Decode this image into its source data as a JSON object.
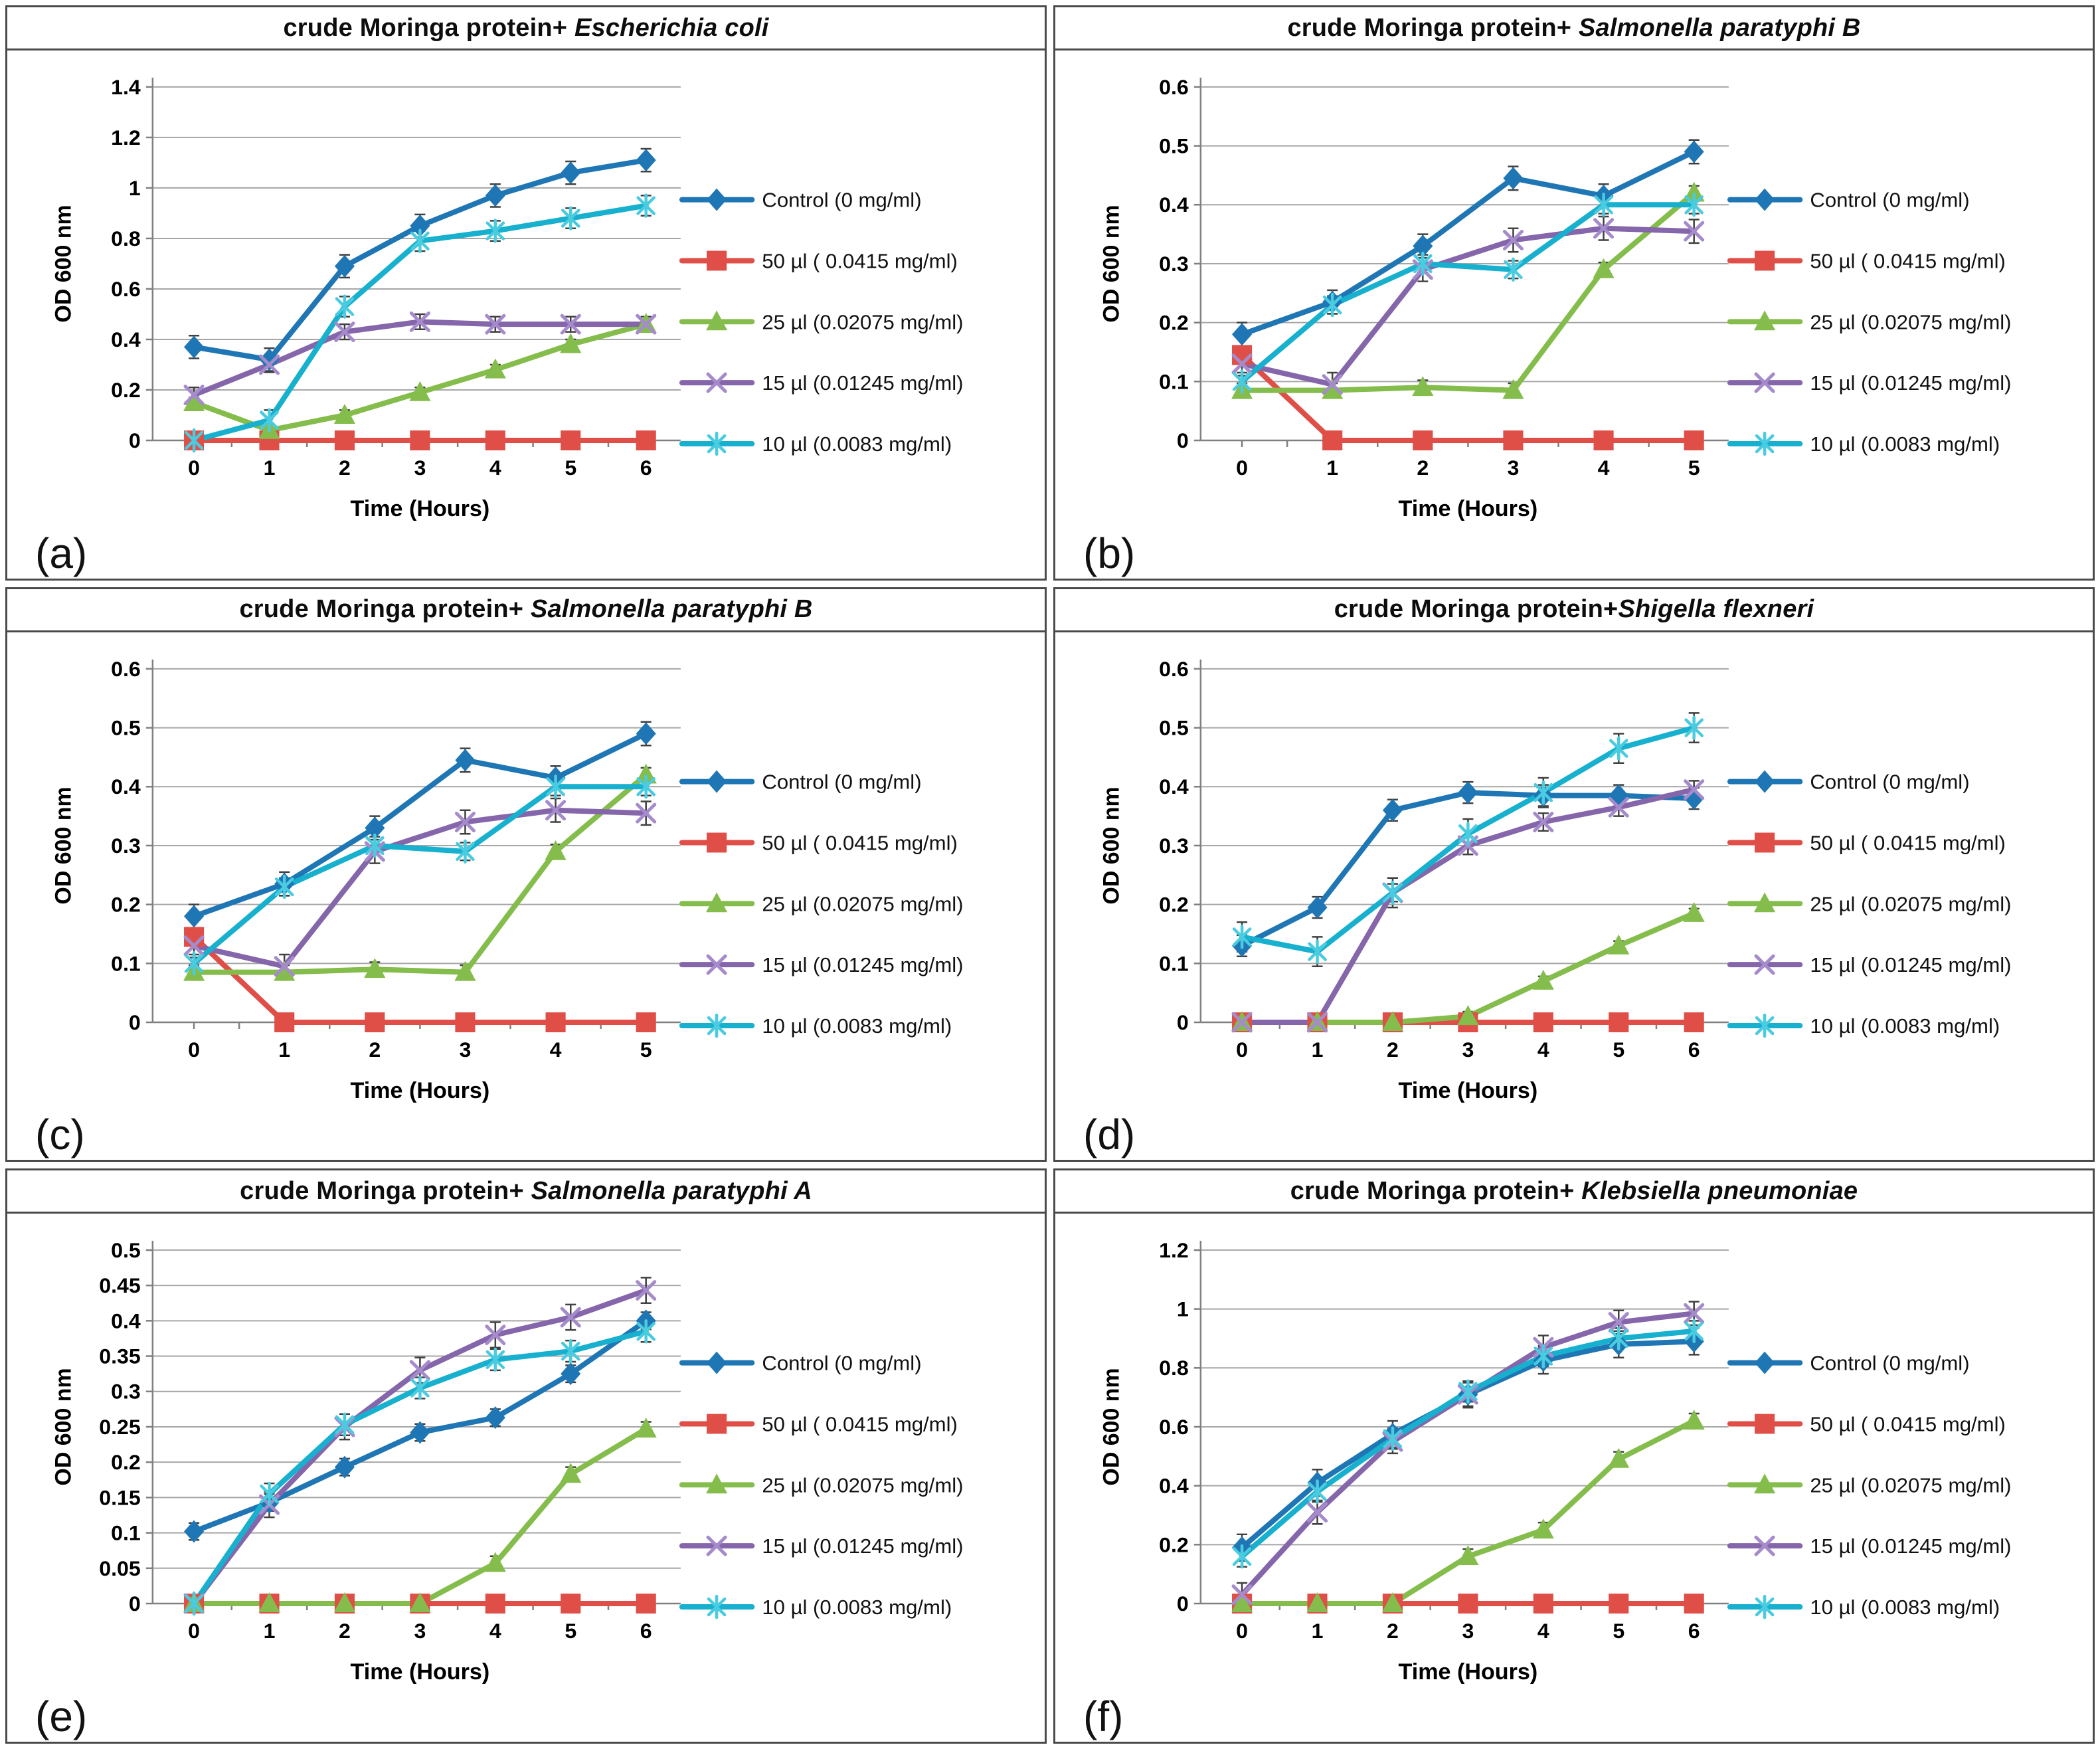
{
  "figure": {
    "background": "#ffffff",
    "panel_border_color": "#4a4a4a",
    "gridline_color": "#a6a6a6",
    "axis_color": "#808080",
    "error_bar_color": "#404040",
    "text_color": "#000000"
  },
  "chart_data": [
    {
      "panel_label": "(a)",
      "type": "line",
      "title_prefix": "crude Moringa protein+ ",
      "title_species": "Escherichia coli",
      "title": "crude Moringa protein+ Escherichia coli",
      "xlabel": "Time (Hours)",
      "ylabel": "OD 600 nm",
      "x": [
        0,
        1,
        2,
        3,
        4,
        5,
        6
      ],
      "ylim": [
        0,
        1.4
      ],
      "ytick_step": 0.2,
      "grid": true,
      "legend_position": "right",
      "series": [
        {
          "name": "Control (0 mg/ml)",
          "marker": "diamond",
          "color": "#1F76B5",
          "marker_color": "#1F76B5",
          "err": 0.045,
          "values": [
            0.37,
            0.32,
            0.69,
            0.85,
            0.97,
            1.06,
            1.11
          ]
        },
        {
          "name": "50 µl ( 0.0415 mg/ml)",
          "marker": "square",
          "color": "#DF4F47",
          "marker_color": "#DF4F47",
          "err": 0,
          "values": [
            0,
            0,
            0,
            0,
            0,
            0,
            0
          ]
        },
        {
          "name": "25 µl (0.02075 mg/ml)",
          "marker": "triangle",
          "color": "#84BD4B",
          "marker_color": "#84BD4B",
          "err": 0.02,
          "values": [
            0.15,
            0.04,
            0.1,
            0.19,
            0.28,
            0.38,
            0.46
          ]
        },
        {
          "name": "15 µl (0.01245 mg/ml)",
          "marker": "x",
          "color": "#8566AB",
          "marker_color": "#A58BCB",
          "err": 0.03,
          "values": [
            0.18,
            0.3,
            0.43,
            0.47,
            0.46,
            0.46,
            0.46
          ]
        },
        {
          "name": "10 µl (0.0083 mg/ml)",
          "marker": "asterisk",
          "color": "#17B0CE",
          "marker_color": "#49CBE0",
          "err": 0.04,
          "values": [
            0,
            0.08,
            0.53,
            0.79,
            0.83,
            0.88,
            0.93
          ]
        }
      ]
    },
    {
      "panel_label": "(b)",
      "type": "line",
      "title_prefix": "crude Moringa protein+ ",
      "title_species": "Salmonella paratyphi B",
      "title": "crude Moringa protein+ Salmonella paratyphi B",
      "xlabel": "Time (Hours)",
      "ylabel": "OD 600 nm",
      "x": [
        0,
        1,
        2,
        3,
        4,
        5
      ],
      "ylim": [
        0,
        0.6
      ],
      "ytick_step": 0.1,
      "grid": true,
      "legend_position": "right",
      "series": [
        {
          "name": "Control (0 mg/ml)",
          "marker": "diamond",
          "color": "#1F76B5",
          "marker_color": "#1F76B5",
          "err": 0.02,
          "values": [
            0.18,
            0.235,
            0.33,
            0.445,
            0.415,
            0.49
          ]
        },
        {
          "name": "50 µl ( 0.0415 mg/ml)",
          "marker": "square",
          "color": "#DF4F47",
          "marker_color": "#DF4F47",
          "err": 0,
          "values": [
            0.145,
            0,
            0,
            0,
            0,
            0
          ]
        },
        {
          "name": "25 µl (0.02075 mg/ml)",
          "marker": "triangle",
          "color": "#84BD4B",
          "marker_color": "#84BD4B",
          "err": 0.012,
          "values": [
            0.085,
            0.085,
            0.09,
            0.085,
            0.29,
            0.42
          ]
        },
        {
          "name": "15 µl (0.01245 mg/ml)",
          "marker": "x",
          "color": "#8566AB",
          "marker_color": "#A58BCB",
          "err": 0.02,
          "values": [
            0.13,
            0.095,
            0.29,
            0.34,
            0.36,
            0.355
          ]
        },
        {
          "name": "10 µl (0.0083 mg/ml)",
          "marker": "asterisk",
          "color": "#17B0CE",
          "marker_color": "#49CBE0",
          "err": 0.015,
          "values": [
            0.1,
            0.23,
            0.3,
            0.29,
            0.4,
            0.4
          ]
        }
      ]
    },
    {
      "panel_label": "(c)",
      "type": "line",
      "title_prefix": "crude Moringa protein+ ",
      "title_species": "Salmonella paratyphi B",
      "title": "crude Moringa protein+ Salmonella paratyphi B",
      "xlabel": "Time (Hours)",
      "ylabel": "OD 600 nm",
      "x": [
        0,
        1,
        2,
        3,
        4,
        5
      ],
      "ylim": [
        0,
        0.6
      ],
      "ytick_step": 0.1,
      "grid": true,
      "legend_position": "right",
      "series": [
        {
          "name": "Control (0 mg/ml)",
          "marker": "diamond",
          "color": "#1F76B5",
          "marker_color": "#1F76B5",
          "err": 0.02,
          "values": [
            0.18,
            0.235,
            0.33,
            0.445,
            0.415,
            0.49
          ]
        },
        {
          "name": "50 µl ( 0.0415 mg/ml)",
          "marker": "square",
          "color": "#DF4F47",
          "marker_color": "#DF4F47",
          "err": 0,
          "values": [
            0.145,
            0,
            0,
            0,
            0,
            0
          ]
        },
        {
          "name": "25 µl (0.02075 mg/ml)",
          "marker": "triangle",
          "color": "#84BD4B",
          "marker_color": "#84BD4B",
          "err": 0.012,
          "values": [
            0.085,
            0.085,
            0.09,
            0.085,
            0.29,
            0.42
          ]
        },
        {
          "name": "15 µl (0.01245 mg/ml)",
          "marker": "x",
          "color": "#8566AB",
          "marker_color": "#A58BCB",
          "err": 0.02,
          "values": [
            0.13,
            0.095,
            0.29,
            0.34,
            0.36,
            0.355
          ]
        },
        {
          "name": "10 µl (0.0083 mg/ml)",
          "marker": "asterisk",
          "color": "#17B0CE",
          "marker_color": "#49CBE0",
          "err": 0.015,
          "values": [
            0.1,
            0.23,
            0.3,
            0.29,
            0.4,
            0.4
          ]
        }
      ]
    },
    {
      "panel_label": "(d)",
      "type": "line",
      "title_prefix": "crude Moringa protein+",
      "title_species": "Shigella flexneri",
      "title": "crude Moringa protein+Shigella flexneri",
      "xlabel": "Time (Hours)",
      "ylabel": "OD 600 nm",
      "x": [
        0,
        1,
        2,
        3,
        4,
        5,
        6
      ],
      "ylim": [
        0,
        0.6
      ],
      "ytick_step": 0.1,
      "grid": true,
      "legend_position": "right",
      "series": [
        {
          "name": "Control (0 mg/ml)",
          "marker": "diamond",
          "color": "#1F76B5",
          "marker_color": "#1F76B5",
          "err": 0.018,
          "values": [
            0.13,
            0.195,
            0.36,
            0.39,
            0.385,
            0.385,
            0.38
          ]
        },
        {
          "name": "50 µl ( 0.0415 mg/ml)",
          "marker": "square",
          "color": "#DF4F47",
          "marker_color": "#DF4F47",
          "err": 0,
          "values": [
            0,
            0,
            0,
            0,
            0,
            0,
            0
          ]
        },
        {
          "name": "25 µl (0.02075 mg/ml)",
          "marker": "triangle",
          "color": "#84BD4B",
          "marker_color": "#84BD4B",
          "err": 0.008,
          "values": [
            0,
            0,
            0,
            0.01,
            0.07,
            0.13,
            0.185
          ]
        },
        {
          "name": "15 µl (0.01245 mg/ml)",
          "marker": "x",
          "color": "#8566AB",
          "marker_color": "#A58BCB",
          "err": 0.015,
          "values": [
            0,
            0,
            0.22,
            0.3,
            0.34,
            0.365,
            0.395
          ]
        },
        {
          "name": "10 µl (0.0083 mg/ml)",
          "marker": "asterisk",
          "color": "#17B0CE",
          "marker_color": "#49CBE0",
          "err": 0.025,
          "values": [
            0.145,
            0.12,
            0.22,
            0.32,
            0.39,
            0.465,
            0.5
          ]
        }
      ]
    },
    {
      "panel_label": "(e)",
      "type": "line",
      "title_prefix": "crude Moringa protein+ ",
      "title_species": "Salmonella paratyphi A",
      "title": "crude Moringa protein+ Salmonella paratyphi A",
      "xlabel": "Time (Hours)",
      "ylabel": "OD 600 nm",
      "x": [
        0,
        1,
        2,
        3,
        4,
        5,
        6
      ],
      "ylim": [
        0,
        0.5
      ],
      "ytick_step": 0.05,
      "grid": true,
      "legend_position": "right",
      "series": [
        {
          "name": "Control (0 mg/ml)",
          "marker": "diamond",
          "color": "#1F76B5",
          "marker_color": "#1F76B5",
          "err": 0.012,
          "values": [
            0.102,
            0.143,
            0.193,
            0.242,
            0.263,
            0.325,
            0.4
          ]
        },
        {
          "name": "50 µl ( 0.0415 mg/ml)",
          "marker": "square",
          "color": "#DF4F47",
          "marker_color": "#DF4F47",
          "err": 0,
          "values": [
            0,
            0,
            0,
            0,
            0,
            0,
            0
          ]
        },
        {
          "name": "25 µl (0.02075 mg/ml)",
          "marker": "triangle",
          "color": "#84BD4B",
          "marker_color": "#84BD4B",
          "err": 0.01,
          "values": [
            0,
            0,
            0,
            0,
            0.057,
            0.183,
            0.247
          ]
        },
        {
          "name": "15 µl (0.01245 mg/ml)",
          "marker": "x",
          "color": "#8566AB",
          "marker_color": "#A58BCB",
          "err": 0.018,
          "values": [
            0,
            0.14,
            0.25,
            0.33,
            0.38,
            0.405,
            0.443
          ]
        },
        {
          "name": "10 µl (0.0083 mg/ml)",
          "marker": "asterisk",
          "color": "#17B0CE",
          "marker_color": "#49CBE0",
          "err": 0.015,
          "values": [
            0,
            0.155,
            0.253,
            0.305,
            0.345,
            0.357,
            0.385
          ]
        }
      ]
    },
    {
      "panel_label": "(f)",
      "type": "line",
      "title_prefix": "crude Moringa protein+ ",
      "title_species": "Klebsiella pneumoniae",
      "title": "crude Moringa protein+ Klebsiella pneumoniae",
      "xlabel": "Time (Hours)",
      "ylabel": "OD 600 nm",
      "x": [
        0,
        1,
        2,
        3,
        4,
        5,
        6
      ],
      "ylim": [
        0,
        1.2
      ],
      "ytick_step": 0.2,
      "grid": true,
      "legend_position": "right",
      "series": [
        {
          "name": "Control (0 mg/ml)",
          "marker": "diamond",
          "color": "#1F76B5",
          "marker_color": "#1F76B5",
          "err": 0.045,
          "values": [
            0.19,
            0.41,
            0.575,
            0.71,
            0.825,
            0.88,
            0.89
          ]
        },
        {
          "name": "50 µl ( 0.0415 mg/ml)",
          "marker": "square",
          "color": "#DF4F47",
          "marker_color": "#DF4F47",
          "err": 0,
          "values": [
            0,
            0,
            0,
            0,
            0,
            0,
            0
          ]
        },
        {
          "name": "25 µl (0.02075 mg/ml)",
          "marker": "triangle",
          "color": "#84BD4B",
          "marker_color": "#84BD4B",
          "err": 0.025,
          "values": [
            0,
            0,
            0,
            0.16,
            0.25,
            0.49,
            0.62
          ]
        },
        {
          "name": "15 µl (0.01245 mg/ml)",
          "marker": "x",
          "color": "#8566AB",
          "marker_color": "#A58BCB",
          "err": 0.04,
          "values": [
            0.03,
            0.31,
            0.55,
            0.71,
            0.87,
            0.955,
            0.985
          ]
        },
        {
          "name": "10 µl (0.0083 mg/ml)",
          "marker": "asterisk",
          "color": "#17B0CE",
          "marker_color": "#49CBE0",
          "err": 0.035,
          "values": [
            0.16,
            0.38,
            0.56,
            0.72,
            0.84,
            0.9,
            0.925
          ]
        }
      ]
    }
  ]
}
